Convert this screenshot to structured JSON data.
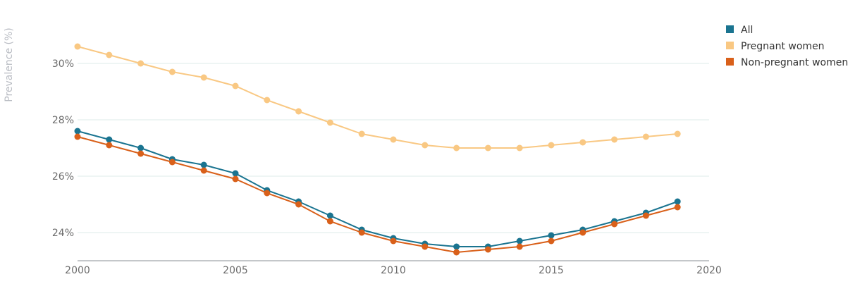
{
  "chart_data": {
    "type": "line",
    "ylabel": "Prevalence (%)",
    "xlabel": "",
    "xlim": [
      2000,
      2020
    ],
    "ylim": [
      23,
      31.5
    ],
    "xticks": [
      2000,
      2005,
      2010,
      2015,
      2020
    ],
    "yticks": [
      24,
      26,
      28,
      30
    ],
    "ytick_suffix": "%",
    "grid": true,
    "legend_position": "top-right",
    "x": [
      2000,
      2001,
      2002,
      2003,
      2004,
      2005,
      2006,
      2007,
      2008,
      2009,
      2010,
      2011,
      2012,
      2013,
      2014,
      2015,
      2016,
      2017,
      2018,
      2019
    ],
    "series": [
      {
        "name": "All",
        "color": "#1a7490",
        "values": [
          27.6,
          27.3,
          27.0,
          26.6,
          26.4,
          26.1,
          25.5,
          25.1,
          24.6,
          24.1,
          23.8,
          23.6,
          23.5,
          23.5,
          23.7,
          23.9,
          24.1,
          24.4,
          24.7,
          25.1
        ]
      },
      {
        "name": "Pregnant women",
        "color": "#f9c883",
        "values": [
          30.6,
          30.3,
          30.0,
          29.7,
          29.5,
          29.2,
          28.7,
          28.3,
          27.9,
          27.5,
          27.3,
          27.1,
          27.0,
          27.0,
          27.0,
          27.1,
          27.2,
          27.3,
          27.4,
          27.5
        ]
      },
      {
        "name": "Non-pregnant women",
        "color": "#d9601a",
        "values": [
          27.4,
          27.1,
          26.8,
          26.5,
          26.2,
          25.9,
          25.4,
          25.0,
          24.4,
          24.0,
          23.7,
          23.5,
          23.3,
          23.4,
          23.5,
          23.7,
          24.0,
          24.3,
          24.6,
          24.9
        ]
      }
    ]
  }
}
